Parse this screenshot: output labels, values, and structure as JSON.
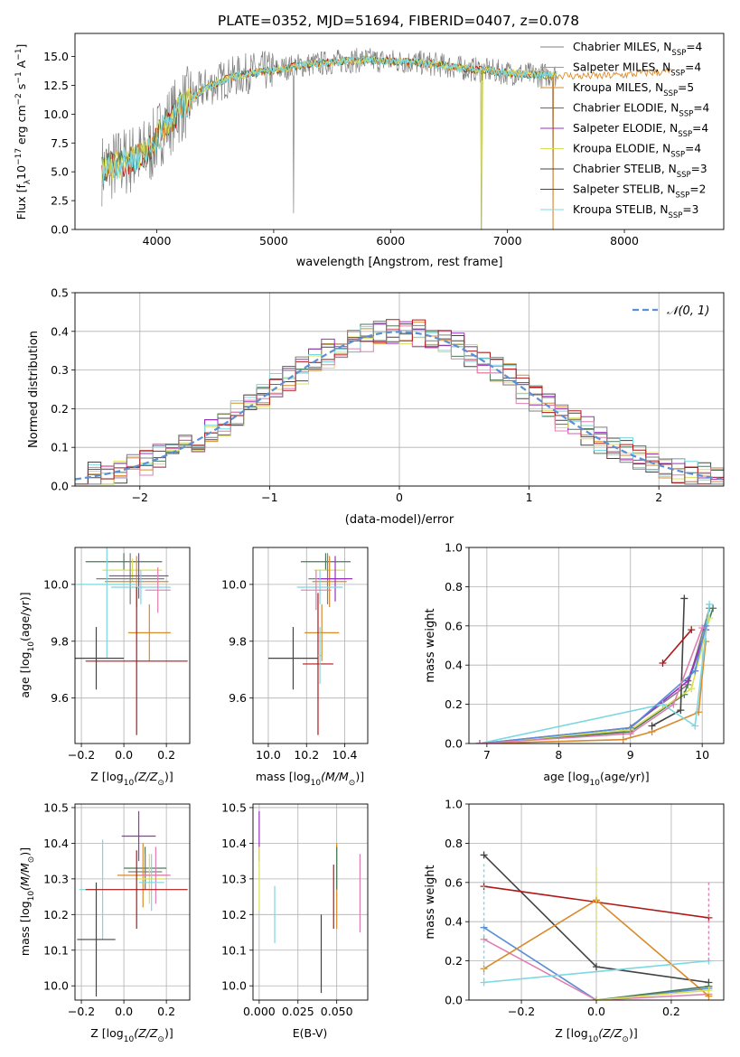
{
  "figure_title": "PLATE=0352, MJD=51694, FIBERID=0407, z=0.078",
  "legend_entries": [
    {
      "label": "Chabrier MILES, N",
      "sub": "SSP",
      "tail": "=4",
      "color": "#7f7f7f"
    },
    {
      "label": "Salpeter MILES, N",
      "sub": "SSP",
      "tail": "=4",
      "color": "#9b9b9b"
    },
    {
      "label": "Kroupa MILES, N",
      "sub": "SSP",
      "tail": "=5",
      "color": "#d98b2b"
    },
    {
      "label": "Chabrier ELODIE, N",
      "sub": "SSP",
      "tail": "=4",
      "color": "#4a7a5a"
    },
    {
      "label": "Salpeter ELODIE, N",
      "sub": "SSP",
      "tail": "=4",
      "color": "#9b30c0"
    },
    {
      "label": "Kroupa ELODIE, N",
      "sub": "SSP",
      "tail": "=4",
      "color": "#d8e05a"
    },
    {
      "label": "Chabrier STELIB, N",
      "sub": "SSP",
      "tail": "=3",
      "color": "#444444"
    },
    {
      "label": "Salpeter STELIB, N",
      "sub": "SSP",
      "tail": "=2",
      "color": "#b01818"
    },
    {
      "label": "Kroupa STELIB, N",
      "sub": "SSP",
      "tail": "=3",
      "color": "#7ad8e0"
    }
  ],
  "colors": {
    "data_gray": "#808080",
    "model_cyan": "#7ad8e0",
    "normal_curve": "#5b8fd6",
    "grid": "#b0b0b0"
  },
  "chart_data": [
    {
      "id": "spectrum",
      "type": "line",
      "xlabel": "wavelength [Angstrom, rest frame]",
      "ylabel": "Flux [f",
      "ylabel_parts": [
        "Flux [f",
        "λ",
        "10",
        "−17",
        " erg cm",
        "−2",
        " s",
        "−1",
        " A",
        "−1",
        "]"
      ],
      "xlim": [
        3300,
        8850
      ],
      "ylim": [
        0,
        17
      ],
      "xticks": [
        4000,
        5000,
        6000,
        7000,
        8000
      ],
      "yticks": [
        0.0,
        2.5,
        5.0,
        7.5,
        10.0,
        12.5,
        15.0
      ],
      "grid": false,
      "legend_position": "upper right",
      "continuum": {
        "x": [
          3530,
          3700,
          3850,
          3950,
          4050,
          4200,
          4400,
          4600,
          4800,
          5000,
          5200,
          5400,
          5600,
          5800,
          6000,
          6200,
          6400,
          6600,
          6800,
          7000,
          7200,
          7400,
          7600,
          7800,
          8000,
          8200,
          8400,
          8600,
          8800
        ],
        "y": [
          5.2,
          5.8,
          6.3,
          7.0,
          8.8,
          10.5,
          12.2,
          13.1,
          13.6,
          13.8,
          14.2,
          14.4,
          14.6,
          14.7,
          14.6,
          14.5,
          14.3,
          14.0,
          13.8,
          13.6,
          13.4,
          13.4,
          13.3,
          13.3,
          13.4,
          13.6,
          13.7,
          13.8,
          14.0
        ]
      },
      "features": [
        {
          "x": 5170,
          "y": 1.4,
          "note": "dip"
        },
        {
          "x": 6775,
          "y": 0.0,
          "note": "dip"
        },
        {
          "x": 7390,
          "y": 0.0,
          "note": "dip"
        }
      ]
    },
    {
      "id": "residual_hist",
      "type": "step-histogram",
      "xlabel": "(data-model)/error",
      "ylabel": "Normed distribution",
      "xlim": [
        -2.5,
        2.5
      ],
      "ylim": [
        0.0,
        0.5
      ],
      "xticks": [
        -2,
        -1,
        0,
        1,
        2
      ],
      "yticks": [
        0.0,
        0.1,
        0.2,
        0.3,
        0.4,
        0.5
      ],
      "grid": true,
      "legend": [
        {
          "label": "N(0,1)",
          "style": "dashed"
        }
      ],
      "legend_position": "upper right",
      "bin_width": 0.1,
      "bin_start": -2.5,
      "series_offsets": [
        0.0,
        0.012,
        -0.01,
        0.018,
        -0.016,
        0.022,
        -0.02,
        0.008,
        -0.006
      ],
      "normal_curve": {
        "mean": 0,
        "sigma": 1
      }
    },
    {
      "id": "age_vs_Z",
      "type": "errorbar",
      "xlabel": "Z [log",
      "xlabel_parts": [
        "Z [log",
        "10",
        "(Z/Z",
        "⊙",
        ")]"
      ],
      "ylabel_parts": [
        "age  [log",
        "10",
        "(age/yr)]"
      ],
      "xlim": [
        -0.23,
        0.31
      ],
      "ylim": [
        9.44,
        10.13
      ],
      "xticks": [
        -0.2,
        0.0,
        0.2
      ],
      "yticks": [
        9.6,
        9.8,
        10.0
      ],
      "grid": true,
      "points": [
        {
          "x": 0.0,
          "y": 10.08,
          "xerr": 0.18,
          "yerr": 0.03,
          "series": 3
        },
        {
          "x": 0.04,
          "y": 10.05,
          "xerr": 0.14,
          "yerr": 0.04,
          "series": 5
        },
        {
          "x": 0.03,
          "y": 10.02,
          "xerr": 0.16,
          "yerr": 0.09,
          "series": 0
        },
        {
          "x": 0.06,
          "y": 10.01,
          "xerr": 0.15,
          "yerr": 0.09,
          "series": 2
        },
        {
          "x": 0.07,
          "y": 10.03,
          "xerr": 0.14,
          "yerr": 0.08,
          "series": 4
        },
        {
          "x": 0.08,
          "y": 9.99,
          "xerr": 0.14,
          "yerr": 0.06,
          "series": 8
        },
        {
          "x": 0.16,
          "y": 9.98,
          "xerr": 0.06,
          "yerr": 0.08,
          "series": 1
        },
        {
          "x": -0.08,
          "y": 10.0,
          "xerr": 0.14,
          "yerr": 0.26,
          "series": 8
        },
        {
          "x": 0.12,
          "y": 9.83,
          "xerr": 0.1,
          "yerr": 0.1,
          "series": 2
        },
        {
          "x": -0.13,
          "y": 9.74,
          "xerr": 0.13,
          "yerr": 0.11,
          "series": 6
        },
        {
          "x": 0.06,
          "y": 9.73,
          "xerr": 0.24,
          "yerr": 0.26,
          "series": 7
        }
      ]
    },
    {
      "id": "age_vs_mass",
      "type": "errorbar",
      "xlabel_parts": [
        "mass [log",
        "10",
        "(M/M",
        "⊙",
        ")]"
      ],
      "xlim": [
        9.92,
        10.52
      ],
      "ylim": [
        9.44,
        10.13
      ],
      "xticks": [
        10.0,
        10.2,
        10.4
      ],
      "yticks": [
        9.6,
        9.8,
        10.0
      ],
      "grid": true,
      "points": [
        {
          "x": 10.3,
          "y": 10.08,
          "xerr": 0.13,
          "yerr": 0.03,
          "series": 3
        },
        {
          "x": 10.32,
          "y": 10.05,
          "xerr": 0.08,
          "yerr": 0.04,
          "series": 5
        },
        {
          "x": 10.31,
          "y": 10.02,
          "xerr": 0.1,
          "yerr": 0.09,
          "series": 0
        },
        {
          "x": 10.32,
          "y": 10.01,
          "xerr": 0.09,
          "yerr": 0.09,
          "series": 2
        },
        {
          "x": 10.35,
          "y": 10.02,
          "xerr": 0.09,
          "yerr": 0.08,
          "series": 4
        },
        {
          "x": 10.27,
          "y": 9.99,
          "xerr": 0.12,
          "yerr": 0.06,
          "series": 8
        },
        {
          "x": 10.25,
          "y": 9.98,
          "xerr": 0.08,
          "yerr": 0.07,
          "series": 1
        },
        {
          "x": 10.28,
          "y": 9.83,
          "xerr": 0.09,
          "yerr": 0.1,
          "series": 2
        },
        {
          "x": 10.13,
          "y": 9.74,
          "xerr": 0.13,
          "yerr": 0.11,
          "series": 6
        },
        {
          "x": 10.26,
          "y": 9.72,
          "xerr": 0.08,
          "yerr": 0.25,
          "series": 7
        },
        {
          "x": 10.27,
          "y": 9.75,
          "xerr": 0.01,
          "yerr": 0.1,
          "series": 8
        }
      ]
    },
    {
      "id": "massweight_vs_age",
      "type": "line",
      "xlabel_parts": [
        "age  [log",
        "10",
        "(age/yr)]"
      ],
      "ylabel": "mass weight",
      "xlim": [
        6.75,
        10.3
      ],
      "ylim": [
        0.0,
        1.0
      ],
      "xticks": [
        7,
        8,
        9,
        10
      ],
      "yticks": [
        0.0,
        0.2,
        0.4,
        0.6,
        0.8,
        1.0
      ],
      "grid": true,
      "series": [
        {
          "s": 0,
          "x": [
            6.9,
            8.9,
            9.8,
            10.1
          ],
          "y": [
            0.0,
            0.06,
            0.3,
            0.69
          ]
        },
        {
          "s": 2,
          "x": [
            6.9,
            8.9,
            9.3,
            9.95,
            10.05
          ],
          "y": [
            0.0,
            0.02,
            0.06,
            0.16,
            0.52
          ]
        },
        {
          "s": 3,
          "x": [
            6.9,
            9.0,
            9.75,
            10.15
          ],
          "y": [
            0.0,
            0.06,
            0.25,
            0.69
          ]
        },
        {
          "s": 4,
          "x": [
            6.9,
            9.0,
            9.8,
            10.05
          ],
          "y": [
            0.0,
            0.08,
            0.32,
            0.58
          ]
        },
        {
          "s": 5,
          "x": [
            6.9,
            9.0,
            9.85,
            10.1
          ],
          "y": [
            0.0,
            0.07,
            0.28,
            0.64
          ]
        },
        {
          "s": 6,
          "x": [
            9.3,
            9.7,
            9.75
          ],
          "y": [
            0.09,
            0.17,
            0.74
          ]
        },
        {
          "s": 7,
          "x": [
            9.45,
            9.85
          ],
          "y": [
            0.41,
            0.58
          ]
        },
        {
          "s": 8,
          "x": [
            6.9,
            9.45,
            9.9,
            10.1
          ],
          "y": [
            0.0,
            0.2,
            0.09,
            0.71
          ]
        },
        {
          "s": 9,
          "x": [
            6.9,
            9.0,
            9.9,
            10.05
          ],
          "y": [
            0.0,
            0.08,
            0.37,
            0.6
          ]
        },
        {
          "s": 10,
          "x": [
            6.9,
            9.0,
            9.6,
            10.0
          ],
          "y": [
            0.0,
            0.05,
            0.2,
            0.59
          ]
        }
      ]
    },
    {
      "id": "mass_vs_Z",
      "type": "errorbar",
      "xlabel_parts": [
        "Z [log",
        "10",
        "(Z/Z",
        "⊙",
        ")]"
      ],
      "ylabel_parts": [
        "mass [log",
        "10",
        "(M/M",
        "⊙",
        ")]"
      ],
      "xlim": [
        -0.23,
        0.31
      ],
      "ylim": [
        9.96,
        10.51
      ],
      "xticks": [
        -0.2,
        0.0,
        0.2
      ],
      "yticks": [
        10.0,
        10.1,
        10.2,
        10.3,
        10.4,
        10.5
      ],
      "grid": true,
      "points": [
        {
          "x": 0.07,
          "y": 10.42,
          "xerr": 0.08,
          "yerr": 0.07,
          "series": 4
        },
        {
          "x": 0.1,
          "y": 10.33,
          "xerr": 0.1,
          "yerr": 0.06,
          "series": 3
        },
        {
          "x": 0.1,
          "y": 10.32,
          "xerr": 0.08,
          "yerr": 0.05,
          "series": 0
        },
        {
          "x": 0.09,
          "y": 10.31,
          "xerr": 0.12,
          "yerr": 0.09,
          "series": 2
        },
        {
          "x": 0.12,
          "y": 10.3,
          "xerr": 0.07,
          "yerr": 0.07,
          "series": 5
        },
        {
          "x": 0.15,
          "y": 10.31,
          "xerr": 0.07,
          "yerr": 0.08,
          "series": 1
        },
        {
          "x": 0.13,
          "y": 10.29,
          "xerr": 0.06,
          "yerr": 0.08,
          "series": 8
        },
        {
          "x": -0.1,
          "y": 10.27,
          "xerr": 0.11,
          "yerr": 0.14,
          "series": 8
        },
        {
          "x": 0.06,
          "y": 10.27,
          "xerr": 0.24,
          "yerr": 0.11,
          "series": 7
        },
        {
          "x": -0.13,
          "y": 10.13,
          "xerr": 0.09,
          "yerr": 0.16,
          "series": 6
        }
      ]
    },
    {
      "id": "mass_vs_ebv",
      "type": "errorbar",
      "xlabel": "E(B-V)",
      "xlim": [
        -0.004,
        0.07
      ],
      "ylim": [
        9.96,
        10.51
      ],
      "xticks": [
        0.0,
        0.025,
        0.05
      ],
      "yticks": [
        10.0,
        10.1,
        10.2,
        10.3,
        10.4,
        10.5
      ],
      "grid": true,
      "points": [
        {
          "x": 0.0,
          "y": 10.42,
          "xerr": 0,
          "yerr": 0.07,
          "series": 4
        },
        {
          "x": 0.0,
          "y": 10.3,
          "xerr": 0,
          "yerr": 0.09,
          "series": 5
        },
        {
          "x": 0.01,
          "y": 10.2,
          "xerr": 0,
          "yerr": 0.08,
          "series": 8
        },
        {
          "x": 0.04,
          "y": 10.09,
          "xerr": 0,
          "yerr": 0.11,
          "series": 6
        },
        {
          "x": 0.048,
          "y": 10.25,
          "xerr": 0,
          "yerr": 0.09,
          "series": 7
        },
        {
          "x": 0.05,
          "y": 10.28,
          "xerr": 0,
          "yerr": 0.12,
          "series": 2
        },
        {
          "x": 0.05,
          "y": 10.33,
          "xerr": 0,
          "yerr": 0.06,
          "series": 3
        },
        {
          "x": 0.065,
          "y": 10.26,
          "xerr": 0,
          "yerr": 0.11,
          "series": 1
        }
      ]
    },
    {
      "id": "massweight_vs_Z",
      "type": "line",
      "xlabel_parts": [
        "Z [log",
        "10",
        "(Z/Z",
        "⊙",
        ")]"
      ],
      "ylabel": "mass weight",
      "xlim": [
        -0.34,
        0.34
      ],
      "ylim": [
        0.0,
        1.0
      ],
      "xticks": [
        -0.2,
        0.0,
        0.2
      ],
      "yticks": [
        0.0,
        0.2,
        0.4,
        0.6,
        0.8,
        1.0
      ],
      "grid": true,
      "series": [
        {
          "s": 6,
          "x": [
            -0.3,
            0.0,
            0.3
          ],
          "y": [
            0.74,
            0.17,
            0.09
          ]
        },
        {
          "s": 7,
          "x": [
            -0.3,
            0.3
          ],
          "y": [
            0.58,
            0.42
          ]
        },
        {
          "s": 9,
          "x": [
            -0.3,
            0.0,
            0.3
          ],
          "y": [
            0.37,
            0.0,
            0.06
          ]
        },
        {
          "s": 10,
          "x": [
            -0.3,
            0.0,
            0.3
          ],
          "y": [
            0.31,
            0.0,
            0.03
          ]
        },
        {
          "s": 2,
          "x": [
            -0.3,
            0.0,
            0.3
          ],
          "y": [
            0.16,
            0.51,
            0.02
          ]
        },
        {
          "s": 8,
          "x": [
            -0.3,
            0.3
          ],
          "y": [
            0.09,
            0.2
          ]
        },
        {
          "s": 3,
          "x": [
            0.0,
            0.3
          ],
          "y": [
            0.0,
            0.07
          ]
        },
        {
          "s": 5,
          "x": [
            0.0,
            0.3
          ],
          "y": [
            0.0,
            0.05
          ]
        }
      ],
      "vertical_markers": [
        {
          "x": -0.3,
          "ymin": 0.1,
          "ymax": 0.7,
          "s": 8
        },
        {
          "x": 0.0,
          "ymin": 0.25,
          "ymax": 0.69,
          "s": 5
        },
        {
          "x": 0.3,
          "ymin": 0.2,
          "ymax": 0.6,
          "s": 1
        }
      ]
    }
  ],
  "series_palette": [
    "#7f7f7f",
    "#e07db0",
    "#d98b2b",
    "#4a7a5a",
    "#9b30c0",
    "#d8e05a",
    "#444444",
    "#b01818",
    "#7ad8e0",
    "#5b8fd6",
    "#e07db0"
  ]
}
